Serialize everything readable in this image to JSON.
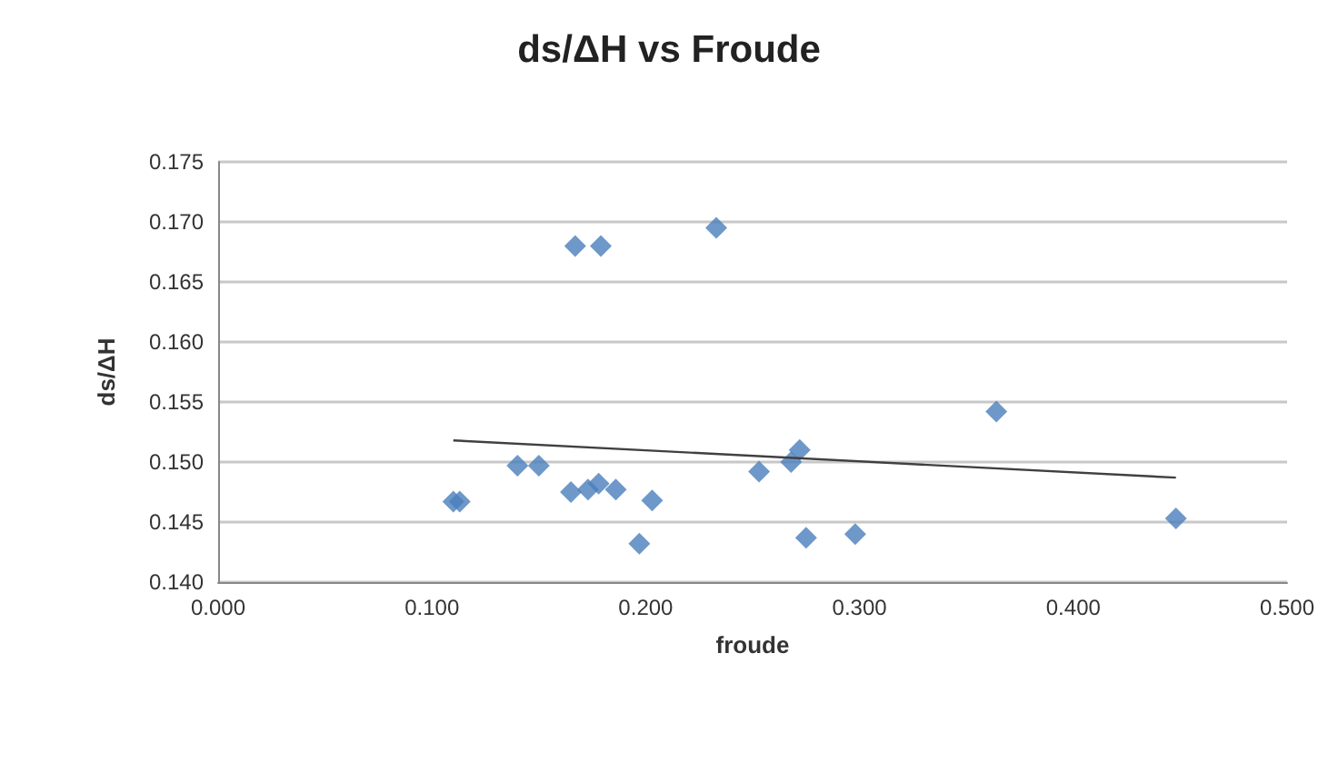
{
  "chart_data": {
    "type": "scatter",
    "title": "ds/ΔH vs Froude",
    "xlabel": "froude",
    "ylabel": "ds/ΔH",
    "marker": "diamond",
    "grid": "y",
    "xlim": [
      0,
      0.5
    ],
    "xticks": [
      {
        "value": 0,
        "label": "0.000"
      },
      {
        "value": 0.1,
        "label": "0.100"
      },
      {
        "value": 0.2,
        "label": "0.200"
      },
      {
        "value": 0.3,
        "label": "0.300"
      },
      {
        "value": 0.4,
        "label": "0.400"
      },
      {
        "value": 0.5,
        "label": "0.500"
      }
    ],
    "ylim": [
      0.14,
      0.175
    ],
    "yticks": [
      {
        "value": 0.14,
        "label": "0.140"
      },
      {
        "value": 0.145,
        "label": "0.145"
      },
      {
        "value": 0.15,
        "label": "0.150"
      },
      {
        "value": 0.155,
        "label": "0.155"
      },
      {
        "value": 0.16,
        "label": "0.160"
      },
      {
        "value": 0.165,
        "label": "0.165"
      },
      {
        "value": 0.17,
        "label": "0.170"
      },
      {
        "value": 0.175,
        "label": "0.175"
      }
    ],
    "series": [
      {
        "color": "#4a7ebb",
        "x": [
          0.11,
          0.113,
          0.14,
          0.15,
          0.165,
          0.173,
          0.178,
          0.186,
          0.197,
          0.203,
          0.167,
          0.179,
          0.233,
          0.253,
          0.268,
          0.272,
          0.275,
          0.298,
          0.364,
          0.448
        ],
        "values": [
          0.1467,
          0.1467,
          0.1497,
          0.1497,
          0.1475,
          0.1477,
          0.1482,
          0.1477,
          0.1432,
          0.1468,
          0.168,
          0.168,
          0.1695,
          0.1492,
          0.15,
          0.151,
          0.1437,
          0.144,
          0.1542,
          0.1453
        ]
      },
      {
        "type": "line",
        "color": "#404040",
        "marker": "none",
        "x": [
          0.11,
          0.448
        ],
        "values": [
          0.1518,
          0.1487
        ]
      }
    ]
  }
}
